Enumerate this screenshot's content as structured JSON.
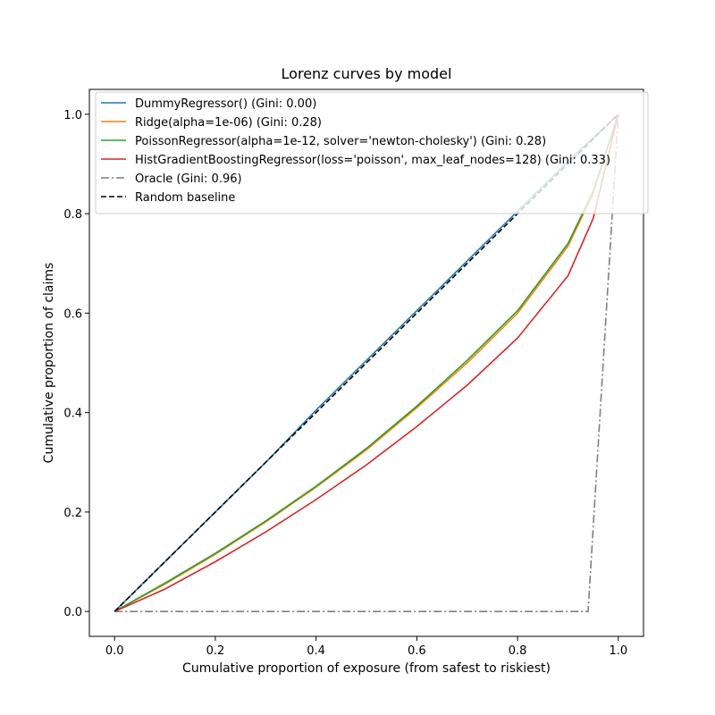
{
  "chart_data": {
    "type": "line",
    "title": "Lorenz curves by model",
    "xlabel": "Cumulative proportion of exposure (from safest to riskiest)",
    "ylabel": "Cumulative proportion of claims",
    "xlim": [
      -0.05,
      1.05
    ],
    "ylim": [
      -0.05,
      1.05
    ],
    "xticks": [
      "0.0",
      "0.2",
      "0.4",
      "0.6",
      "0.8",
      "1.0"
    ],
    "yticks": [
      "0.0",
      "0.2",
      "0.4",
      "0.6",
      "0.8",
      "1.0"
    ],
    "grid": false,
    "legend_position": "upper-left",
    "series": [
      {
        "name": "DummyRegressor() (Gini: 0.00)",
        "color": "#1f77b4",
        "style": "solid",
        "x": [
          0.0,
          0.1,
          0.2,
          0.3,
          0.4,
          0.5,
          0.6,
          0.7,
          0.8,
          0.9,
          1.0
        ],
        "y": [
          0.0,
          0.1,
          0.2,
          0.3,
          0.405,
          0.505,
          0.605,
          0.705,
          0.805,
          0.905,
          1.0
        ]
      },
      {
        "name": "Ridge(alpha=1e-06) (Gini: 0.28)",
        "color": "#ff7f0e",
        "style": "solid",
        "x": [
          0.0,
          0.1,
          0.2,
          0.3,
          0.4,
          0.5,
          0.6,
          0.7,
          0.8,
          0.9,
          0.95,
          1.0
        ],
        "y": [
          0.0,
          0.055,
          0.115,
          0.18,
          0.25,
          0.325,
          0.41,
          0.5,
          0.6,
          0.735,
          0.84,
          1.0
        ]
      },
      {
        "name": "PoissonRegressor(alpha=1e-12, solver='newton-cholesky') (Gini: 0.28)",
        "color": "#2ca02c",
        "style": "solid",
        "x": [
          0.0,
          0.1,
          0.2,
          0.3,
          0.4,
          0.5,
          0.6,
          0.7,
          0.8,
          0.9,
          0.95,
          1.0
        ],
        "y": [
          0.0,
          0.057,
          0.117,
          0.182,
          0.252,
          0.328,
          0.413,
          0.505,
          0.605,
          0.74,
          0.845,
          1.0
        ]
      },
      {
        "name": "HistGradientBoostingRegressor(loss='poisson', max_leaf_nodes=128) (Gini: 0.33)",
        "color": "#d62728",
        "style": "solid",
        "x": [
          0.0,
          0.1,
          0.2,
          0.3,
          0.4,
          0.5,
          0.6,
          0.7,
          0.8,
          0.9,
          0.95,
          1.0
        ],
        "y": [
          0.0,
          0.045,
          0.1,
          0.16,
          0.225,
          0.295,
          0.372,
          0.455,
          0.55,
          0.675,
          0.79,
          1.0
        ]
      },
      {
        "name": "Oracle (Gini: 0.96)",
        "color": "#7f7f7f",
        "style": "dashdot",
        "x": [
          0.0,
          0.94,
          1.0
        ],
        "y": [
          0.0,
          0.0,
          1.0
        ]
      },
      {
        "name": "Random baseline",
        "color": "#000000",
        "style": "dashed",
        "x": [
          0.0,
          1.0
        ],
        "y": [
          0.0,
          1.0
        ]
      }
    ]
  }
}
